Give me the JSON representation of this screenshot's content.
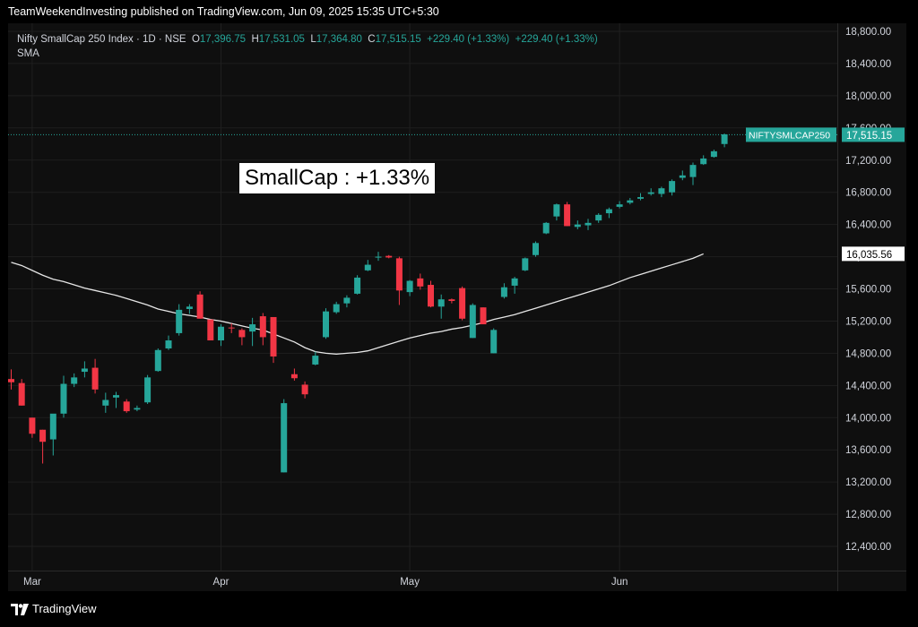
{
  "header": {
    "text": "TeamWeekendInvesting published on TradingView.com, Jun 09, 2025 15:35 UTC+5:30"
  },
  "legend": {
    "symbol": "Nifty SmallCap 250 Index · 1D · NSE",
    "o_label": "O",
    "o_value": "17,396.75",
    "h_label": "H",
    "h_value": "17,531.05",
    "l_label": "L",
    "l_value": "17,364.80",
    "c_label": "C",
    "c_value": "17,515.15",
    "change1": "+229.40 (+1.33%)",
    "change2": "+229.40 (+1.33%)",
    "indicator": "SMA"
  },
  "annotation": {
    "text": "SmallCap : +1.33%"
  },
  "footer": {
    "brand": "TradingView"
  },
  "colors": {
    "up": "#26a69a",
    "down": "#f23645",
    "sma": "#e6e6e6",
    "background": "#0f0f0f",
    "axis_text": "#d1d4dc"
  },
  "chart_data": {
    "type": "candlestick",
    "ylim": [
      12100,
      18900
    ],
    "y_ticks": [
      "12,400.00",
      "12,800.00",
      "13,200.00",
      "13,600.00",
      "14,000.00",
      "14,400.00",
      "14,800.00",
      "15,200.00",
      "15,600.00",
      "16,000.00",
      "16,400.00",
      "16,800.00",
      "17,200.00",
      "17,600.00",
      "18,000.00",
      "18,400.00",
      "18,800.00"
    ],
    "x_ticks": [
      {
        "label": "Mar",
        "index": 2
      },
      {
        "label": "Apr",
        "index": 20
      },
      {
        "label": "May",
        "index": 38
      },
      {
        "label": "Jun",
        "index": 58
      }
    ],
    "price_label": {
      "name": "NIFTYSMLCAP250",
      "value": "17,515.15",
      "price": 17515.15
    },
    "sma_label": {
      "value": "16,035.56",
      "price": 16035.56
    },
    "candles": [
      [
        14480,
        14600,
        14350,
        14440
      ],
      [
        14430,
        14480,
        14150,
        14150
      ],
      [
        14000,
        14000,
        13750,
        13800
      ],
      [
        13850,
        13850,
        13430,
        13700
      ],
      [
        13730,
        14030,
        13530,
        14050
      ],
      [
        14050,
        14520,
        14000,
        14420
      ],
      [
        14420,
        14550,
        14380,
        14500
      ],
      [
        14570,
        14700,
        14500,
        14610
      ],
      [
        14620,
        14730,
        14300,
        14350
      ],
      [
        14150,
        14310,
        14060,
        14220
      ],
      [
        14250,
        14320,
        14120,
        14280
      ],
      [
        14200,
        14230,
        14060,
        14080
      ],
      [
        14100,
        14150,
        14080,
        14120
      ],
      [
        14190,
        14530,
        14170,
        14500
      ],
      [
        14580,
        14860,
        14570,
        14840
      ],
      [
        14860,
        15020,
        14840,
        14960
      ],
      [
        15050,
        15410,
        15020,
        15340
      ],
      [
        15350,
        15410,
        15290,
        15380
      ],
      [
        15530,
        15570,
        15230,
        15230
      ],
      [
        15220,
        15220,
        14960,
        14960
      ],
      [
        14960,
        15160,
        14890,
        15130
      ],
      [
        15120,
        15170,
        15050,
        15110
      ],
      [
        15090,
        15110,
        14900,
        15000
      ],
      [
        15070,
        15240,
        14890,
        15160
      ],
      [
        15260,
        15300,
        14900,
        15000
      ],
      [
        15250,
        15250,
        14680,
        14760
      ],
      [
        13320,
        14230,
        13320,
        14180
      ],
      [
        14540,
        14610,
        14460,
        14490
      ],
      [
        14410,
        14450,
        14240,
        14290
      ],
      [
        14660,
        14820,
        14650,
        14770
      ],
      [
        15000,
        15360,
        14980,
        15320
      ],
      [
        15310,
        15440,
        15290,
        15410
      ],
      [
        15420,
        15520,
        15370,
        15490
      ],
      [
        15540,
        15770,
        15530,
        15740
      ],
      [
        15830,
        15960,
        15820,
        15900
      ],
      [
        15990,
        16060,
        15950,
        16000
      ],
      [
        16010,
        16020,
        15980,
        15990
      ],
      [
        15980,
        16000,
        15400,
        15580
      ],
      [
        15560,
        15710,
        15510,
        15700
      ],
      [
        15730,
        15790,
        15590,
        15630
      ],
      [
        15650,
        15700,
        15370,
        15380
      ],
      [
        15380,
        15530,
        15230,
        15470
      ],
      [
        15470,
        15480,
        15420,
        15450
      ],
      [
        15610,
        15630,
        15210,
        15230
      ],
      [
        14990,
        15420,
        14990,
        15400
      ],
      [
        15370,
        15370,
        15170,
        15160
      ],
      [
        14800,
        15110,
        14800,
        15090
      ],
      [
        15500,
        15670,
        15480,
        15620
      ],
      [
        15640,
        15750,
        15540,
        15730
      ],
      [
        15830,
        15990,
        15820,
        15980
      ],
      [
        16020,
        16190,
        16000,
        16170
      ],
      [
        16290,
        16430,
        16280,
        16420
      ],
      [
        16500,
        16660,
        16450,
        16650
      ],
      [
        16650,
        16680,
        16380,
        16380
      ],
      [
        16370,
        16450,
        16340,
        16400
      ],
      [
        16390,
        16470,
        16330,
        16420
      ],
      [
        16450,
        16540,
        16420,
        16520
      ],
      [
        16540,
        16610,
        16480,
        16590
      ],
      [
        16620,
        16690,
        16600,
        16650
      ],
      [
        16670,
        16730,
        16650,
        16700
      ],
      [
        16720,
        16790,
        16700,
        16740
      ],
      [
        16780,
        16850,
        16760,
        16800
      ],
      [
        16780,
        16870,
        16740,
        16850
      ],
      [
        16800,
        16960,
        16760,
        16940
      ],
      [
        16980,
        17070,
        16950,
        17010
      ],
      [
        16990,
        17170,
        16890,
        17140
      ],
      [
        17150,
        17260,
        17140,
        17220
      ],
      [
        17240,
        17330,
        17230,
        17310
      ],
      [
        17400,
        17530,
        17360,
        17520
      ]
    ],
    "sma": [
      15930,
      15890,
      15830,
      15770,
      15720,
      15690,
      15650,
      15610,
      15580,
      15550,
      15520,
      15480,
      15440,
      15400,
      15350,
      15320,
      15290,
      15270,
      15250,
      15220,
      15200,
      15170,
      15140,
      15110,
      15090,
      15040,
      14990,
      14940,
      14870,
      14820,
      14800,
      14790,
      14800,
      14810,
      14830,
      14870,
      14910,
      14950,
      14990,
      15020,
      15050,
      15070,
      15100,
      15120,
      15150,
      15180,
      15220,
      15250,
      15280,
      15320,
      15360,
      15400,
      15440,
      15480,
      15520,
      15560,
      15600,
      15640,
      15690,
      15740,
      15780,
      15820,
      15860,
      15900,
      15940,
      15980,
      16035
    ]
  }
}
